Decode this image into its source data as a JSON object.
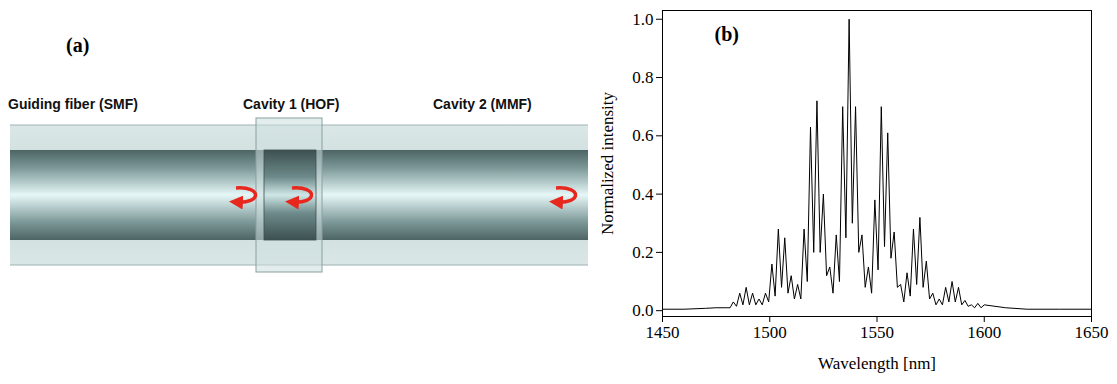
{
  "diagram": {
    "panel": "(a)",
    "components": [
      {
        "label": "Guiding fiber (SMF)"
      },
      {
        "label": "Cavity 1 (HOF)"
      },
      {
        "label": "Cavity 2 (MMF)"
      }
    ]
  },
  "chart_data": {
    "type": "line",
    "annotations": [
      "(b)"
    ],
    "x_label": "Wavelength [nm]",
    "y_label": "Normalized intensity",
    "color": "#000000",
    "x": [
      1450,
      1460,
      1470,
      1475,
      1480,
      1481.5,
      1483,
      1484.5,
      1486,
      1487.5,
      1489,
      1490.5,
      1492,
      1493.5,
      1495,
      1496.5,
      1498,
      1499.5,
      1501,
      1502.5,
      1504,
      1505.5,
      1507,
      1508.5,
      1510,
      1511.5,
      1513,
      1514.5,
      1516,
      1517.5,
      1519,
      1520.5,
      1522,
      1523.5,
      1525,
      1526.5,
      1528,
      1529.5,
      1531,
      1532.5,
      1534,
      1535.5,
      1537,
      1538.5,
      1540,
      1541.5,
      1543,
      1544.5,
      1546,
      1547.5,
      1549,
      1550.5,
      1552,
      1553.5,
      1555,
      1556.5,
      1558,
      1559.5,
      1561,
      1562.5,
      1564,
      1565.5,
      1567,
      1568.5,
      1570,
      1571.5,
      1573,
      1574.5,
      1576,
      1577.5,
      1579,
      1580.5,
      1582,
      1583.5,
      1585,
      1586.5,
      1588,
      1589.5,
      1591,
      1592.5,
      1594,
      1595.5,
      1597,
      1598.5,
      1600,
      1610,
      1620,
      1635,
      1650
    ],
    "values": [
      0.005,
      0.005,
      0.008,
      0.01,
      0.01,
      0.01,
      0.03,
      0.015,
      0.06,
      0.02,
      0.08,
      0.02,
      0.06,
      0.02,
      0.04,
      0.02,
      0.06,
      0.03,
      0.16,
      0.05,
      0.28,
      0.08,
      0.25,
      0.06,
      0.12,
      0.04,
      0.09,
      0.04,
      0.28,
      0.1,
      0.63,
      0.2,
      0.72,
      0.2,
      0.4,
      0.12,
      0.15,
      0.06,
      0.26,
      0.1,
      0.7,
      0.25,
      1.0,
      0.3,
      0.7,
      0.2,
      0.26,
      0.08,
      0.15,
      0.06,
      0.38,
      0.14,
      0.7,
      0.22,
      0.61,
      0.18,
      0.27,
      0.08,
      0.09,
      0.03,
      0.13,
      0.05,
      0.28,
      0.09,
      0.32,
      0.08,
      0.17,
      0.04,
      0.06,
      0.02,
      0.04,
      0.02,
      0.08,
      0.03,
      0.1,
      0.03,
      0.08,
      0.02,
      0.035,
      0.015,
      0.02,
      0.01,
      0.025,
      0.01,
      0.02,
      0.01,
      0.005,
      0.005,
      0.005
    ],
    "xlim": [
      1450,
      1650
    ],
    "xticks": [
      1450,
      1500,
      1550,
      1600,
      1650
    ],
    "ylim": [
      -0.02,
      1.03
    ],
    "yticks": [
      {
        "value": 0,
        "label": "0.0"
      },
      {
        "value": 0.2,
        "label": "0.2"
      },
      {
        "value": 0.4,
        "label": "0.4"
      },
      {
        "value": 0.6,
        "label": "0.6"
      },
      {
        "value": 0.8,
        "label": "0.8"
      },
      {
        "value": 1,
        "label": "1.0"
      }
    ],
    "grid": false
  }
}
